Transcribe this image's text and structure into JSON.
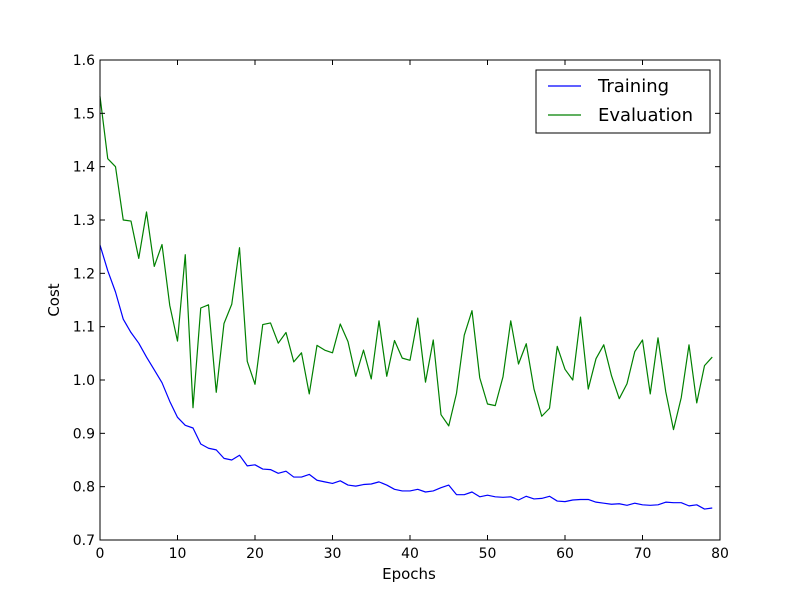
{
  "chart_data": {
    "type": "line",
    "xlabel": "Epochs",
    "ylabel": "Cost",
    "xlim": [
      0,
      80
    ],
    "ylim": [
      0.7,
      1.6
    ],
    "x_ticks": [
      0,
      10,
      20,
      30,
      40,
      50,
      60,
      70,
      80
    ],
    "y_ticks": [
      0.7,
      0.8,
      0.9,
      1.0,
      1.1,
      1.2,
      1.3,
      1.4,
      1.5,
      1.6
    ],
    "x_tick_labels": [
      "0",
      "10",
      "20",
      "30",
      "40",
      "50",
      "60",
      "70",
      "80"
    ],
    "y_tick_labels": [
      "0.7",
      "0.8",
      "0.9",
      "1.0",
      "1.1",
      "1.2",
      "1.3",
      "1.4",
      "1.5",
      "1.6"
    ],
    "grid": false,
    "legend": {
      "position": "top-right"
    },
    "series": [
      {
        "name": "Training",
        "color": "#0000ff",
        "x": [
          0,
          1,
          2,
          3,
          4,
          5,
          6,
          7,
          8,
          9,
          10,
          11,
          12,
          13,
          14,
          15,
          16,
          17,
          18,
          19,
          20,
          21,
          22,
          23,
          24,
          25,
          26,
          27,
          28,
          29,
          30,
          31,
          32,
          33,
          34,
          35,
          36,
          37,
          38,
          39,
          40,
          41,
          42,
          43,
          44,
          45,
          46,
          47,
          48,
          49,
          50,
          51,
          52,
          53,
          54,
          55,
          56,
          57,
          58,
          59,
          60,
          61,
          62,
          63,
          64,
          65,
          66,
          67,
          68,
          69,
          70,
          71,
          72,
          73,
          74,
          75,
          76,
          77,
          78,
          79
        ],
        "values": [
          1.253,
          1.205,
          1.165,
          1.114,
          1.089,
          1.069,
          1.043,
          1.019,
          0.995,
          0.96,
          0.93,
          0.915,
          0.91,
          0.88,
          0.872,
          0.869,
          0.853,
          0.85,
          0.859,
          0.839,
          0.841,
          0.833,
          0.832,
          0.825,
          0.829,
          0.818,
          0.818,
          0.823,
          0.812,
          0.809,
          0.806,
          0.811,
          0.803,
          0.801,
          0.804,
          0.805,
          0.809,
          0.803,
          0.795,
          0.792,
          0.792,
          0.795,
          0.79,
          0.792,
          0.798,
          0.803,
          0.785,
          0.785,
          0.79,
          0.781,
          0.784,
          0.781,
          0.78,
          0.781,
          0.775,
          0.782,
          0.777,
          0.778,
          0.782,
          0.773,
          0.772,
          0.775,
          0.776,
          0.776,
          0.771,
          0.769,
          0.767,
          0.768,
          0.765,
          0.769,
          0.766,
          0.765,
          0.766,
          0.771,
          0.77,
          0.77,
          0.764,
          0.766,
          0.758,
          0.76
        ]
      },
      {
        "name": "Evaluation",
        "color": "#008000",
        "x": [
          0,
          1,
          2,
          3,
          4,
          5,
          6,
          7,
          8,
          9,
          10,
          11,
          12,
          13,
          14,
          15,
          16,
          17,
          18,
          19,
          20,
          21,
          22,
          23,
          24,
          25,
          26,
          27,
          28,
          29,
          30,
          31,
          32,
          33,
          34,
          35,
          36,
          37,
          38,
          39,
          40,
          41,
          42,
          43,
          44,
          45,
          46,
          47,
          48,
          49,
          50,
          51,
          52,
          53,
          54,
          55,
          56,
          57,
          58,
          59,
          60,
          61,
          62,
          63,
          64,
          65,
          66,
          67,
          68,
          69,
          70,
          71,
          72,
          73,
          74,
          75,
          76,
          77,
          78,
          79
        ],
        "values": [
          1.532,
          1.415,
          1.4,
          1.3,
          1.298,
          1.228,
          1.315,
          1.213,
          1.254,
          1.14,
          1.073,
          1.235,
          0.948,
          1.135,
          1.141,
          0.977,
          1.106,
          1.142,
          1.248,
          1.035,
          0.992,
          1.104,
          1.107,
          1.069,
          1.089,
          1.034,
          1.051,
          0.974,
          1.065,
          1.056,
          1.051,
          1.105,
          1.072,
          1.007,
          1.056,
          1.002,
          1.111,
          1.007,
          1.074,
          1.041,
          1.037,
          1.116,
          0.996,
          1.075,
          0.935,
          0.914,
          0.975,
          1.084,
          1.13,
          1.004,
          0.955,
          0.952,
          1.006,
          1.111,
          1.03,
          1.068,
          0.983,
          0.932,
          0.947,
          1.063,
          1.02,
          1.0,
          1.118,
          0.983,
          1.04,
          1.066,
          1.008,
          0.965,
          0.993,
          1.053,
          1.075,
          0.974,
          1.079,
          0.978,
          0.907,
          0.967,
          1.066,
          0.957,
          1.027,
          1.043
        ]
      }
    ]
  }
}
